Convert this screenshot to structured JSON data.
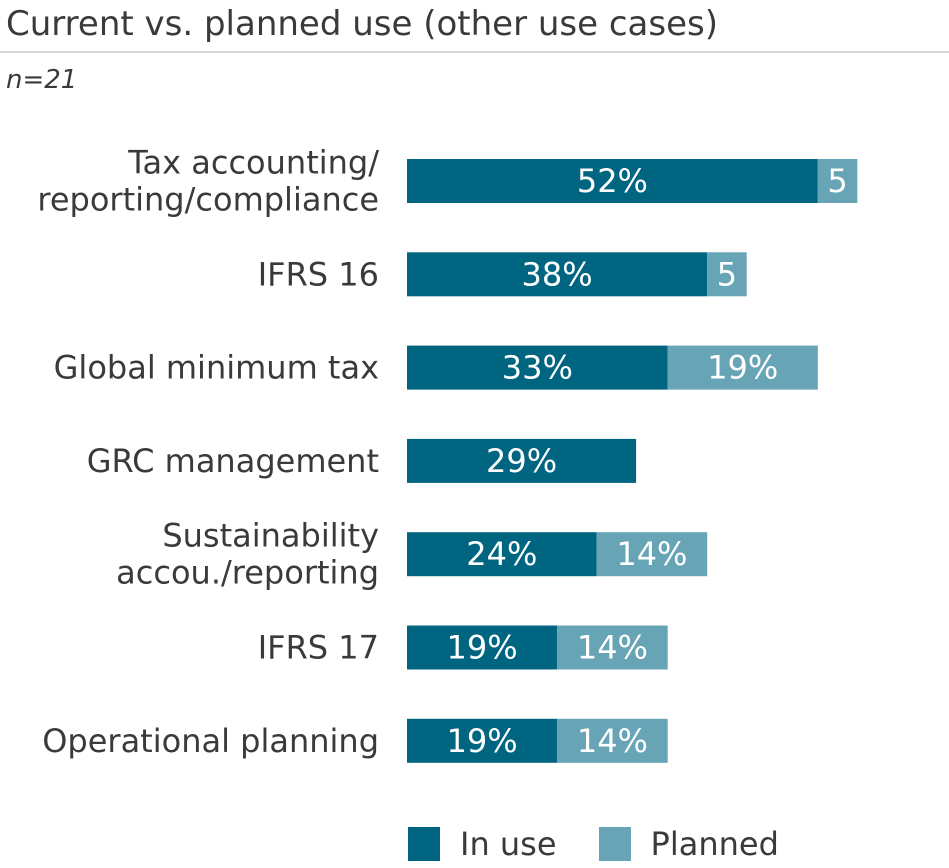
{
  "title": "Current vs. planned use (other use cases)",
  "subtitle": "n=21",
  "colors": {
    "in_use": "#006580",
    "planned": "#67a4b6",
    "label": "#ffffff"
  },
  "chart_data": {
    "type": "bar",
    "orientation": "horizontal",
    "stacked": true,
    "categories": [
      "Tax accounting/\nreporting/compliance",
      "IFRS 16",
      "Global minimum tax",
      "GRC management",
      "Sustainability\naccou./reporting",
      "IFRS 17",
      "Operational planning"
    ],
    "series": [
      {
        "name": "In use",
        "values": [
          52,
          38,
          33,
          29,
          24,
          19,
          19
        ],
        "labels": [
          "52%",
          "38%",
          "33%",
          "29%",
          "24%",
          "19%",
          "19%"
        ]
      },
      {
        "name": "Planned",
        "values": [
          5,
          5,
          19,
          0,
          14,
          14,
          14
        ],
        "labels": [
          "5",
          "5",
          "19%",
          "",
          "14%",
          "14%",
          "14%"
        ]
      }
    ],
    "xlim": [
      0,
      100
    ],
    "grid": false,
    "legend": "bottom"
  }
}
